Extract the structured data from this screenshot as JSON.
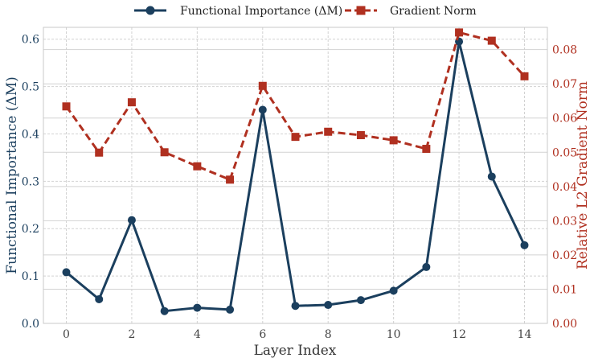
{
  "chart_data": {
    "type": "line",
    "x": [
      0,
      1,
      2,
      3,
      4,
      5,
      6,
      7,
      8,
      9,
      10,
      11,
      12,
      13,
      14
    ],
    "xlabel": "Layer Index",
    "xlim": [
      -0.7,
      14.7
    ],
    "xticks": [
      0,
      2,
      4,
      6,
      8,
      10,
      12,
      14
    ],
    "ylabel_left": "Functional Importance (ΔM)",
    "ylabel_right": "Relative L2 Gradient Norm",
    "ylim_left": [
      0,
      0.625
    ],
    "yticks_left": [
      "0.0",
      "0.1",
      "0.2",
      "0.3",
      "0.4",
      "0.5",
      "0.6"
    ],
    "ylim_right": [
      0,
      0.0865
    ],
    "yticks_right": [
      "0.00",
      "0.01",
      "0.02",
      "0.03",
      "0.04",
      "0.05",
      "0.06",
      "0.07",
      "0.08"
    ],
    "grid": true,
    "legend_position": "top-center",
    "series": [
      {
        "name": "Functional Importance (ΔM)",
        "axis": "left",
        "marker": "circle",
        "line": "solid",
        "color": "#1b3f5e",
        "values": [
          0.108,
          0.051,
          0.218,
          0.026,
          0.033,
          0.029,
          0.451,
          0.037,
          0.039,
          0.049,
          0.069,
          0.119,
          0.595,
          0.31,
          0.165
        ]
      },
      {
        "name": "Gradient Norm",
        "axis": "right",
        "marker": "square",
        "line": "dashed",
        "color": "#b03020",
        "values": [
          0.0634,
          0.0499,
          0.0646,
          0.05,
          0.0459,
          0.042,
          0.0694,
          0.0545,
          0.056,
          0.055,
          0.0535,
          0.051,
          0.085,
          0.0826,
          0.0722
        ]
      }
    ]
  }
}
